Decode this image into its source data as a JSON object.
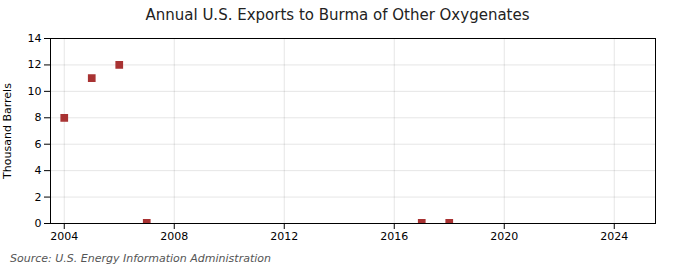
{
  "chart_data": {
    "type": "scatter",
    "title": "Annual U.S. Exports to Burma of Other Oxygenates",
    "ylabel": "Thousand Barrels",
    "source": "Source: U.S. Energy Information Administration",
    "x": [
      2004,
      2005,
      2006,
      2007,
      2017,
      2018
    ],
    "values": [
      8,
      11,
      12,
      0.05,
      0.05,
      0.05
    ],
    "color": "#a83232",
    "marker": "square",
    "xlim": [
      2003.5,
      2025.5
    ],
    "xticks": [
      2004,
      2008,
      2012,
      2016,
      2020,
      2024
    ],
    "ylim": [
      0,
      14
    ],
    "yticks": [
      0,
      2,
      4,
      6,
      8,
      10,
      12,
      14
    ],
    "grid": true
  }
}
